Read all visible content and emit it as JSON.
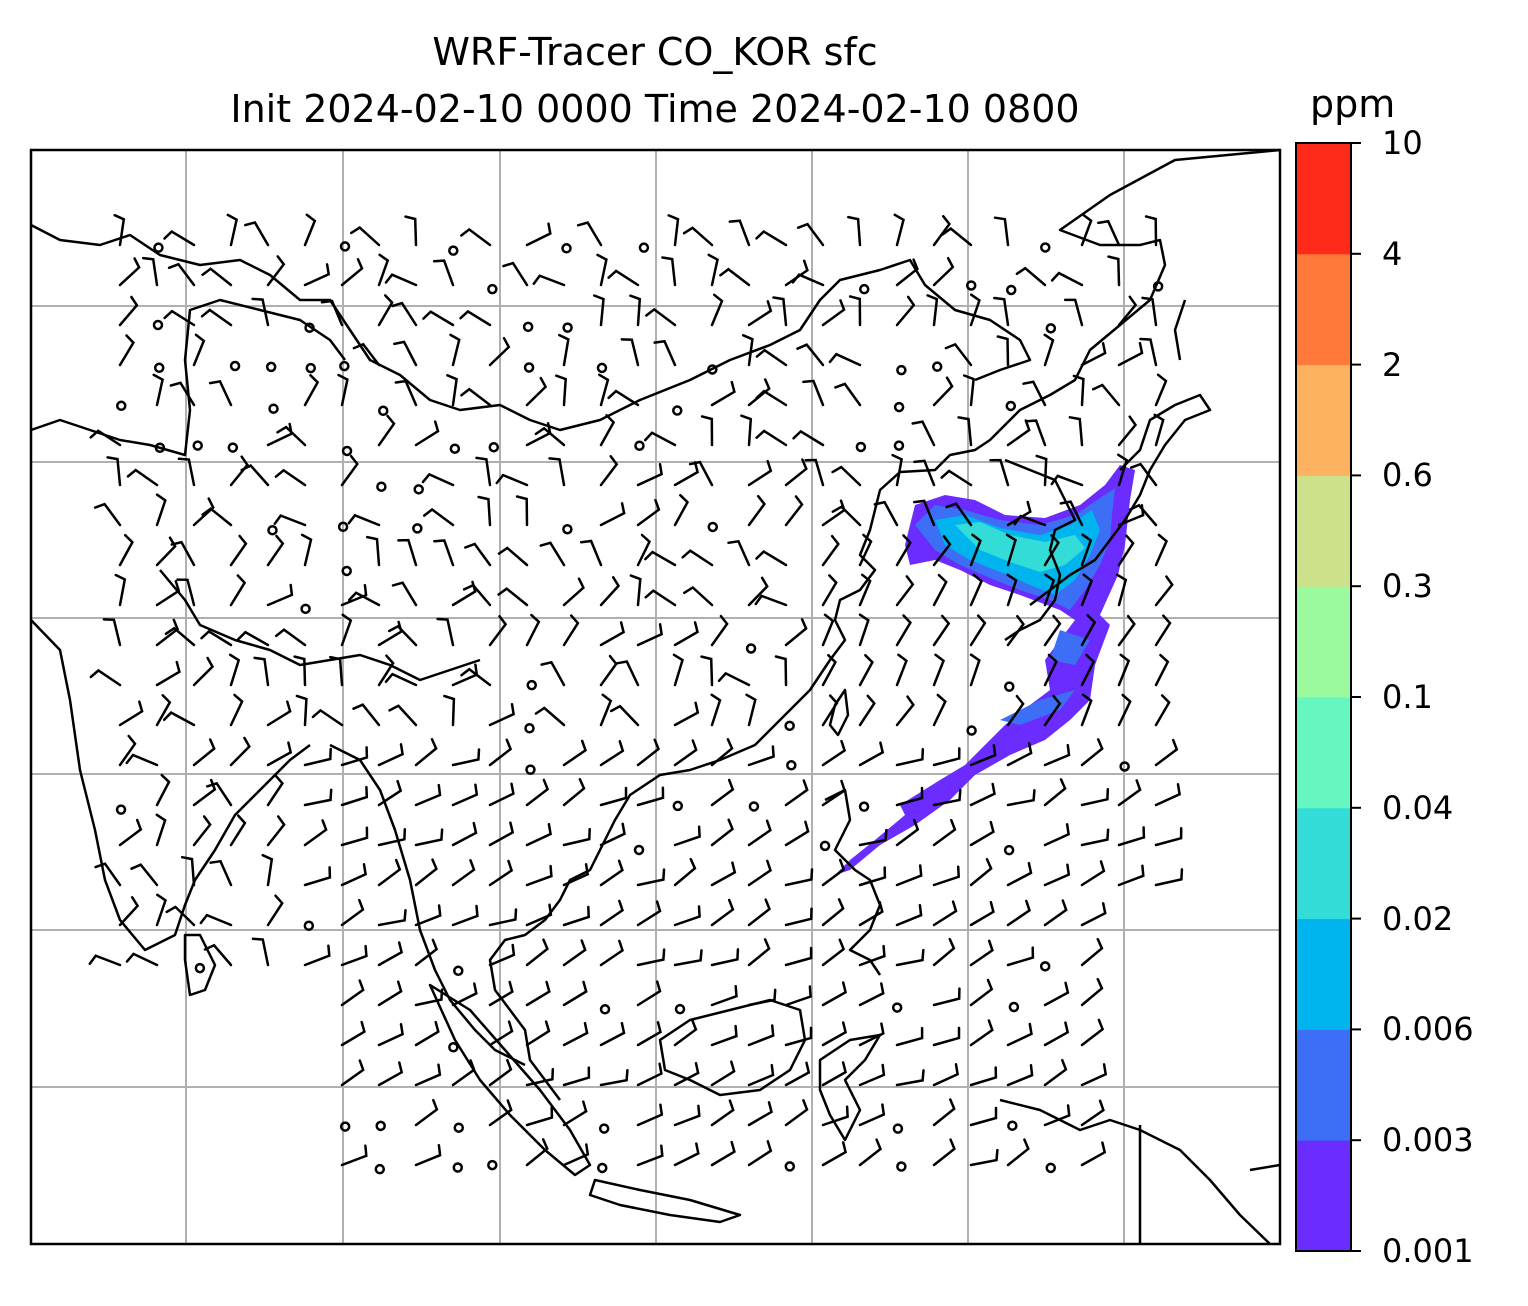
{
  "title_line1": "WRF-Tracer CO_KOR sfc",
  "title_line2": "Init 2024-02-10 0000 Time 2024-02-10 0800",
  "colorbar": {
    "unit": "ppm",
    "ticks": [
      "0.001",
      "0.003",
      "0.006",
      "0.02",
      "0.04",
      "0.1",
      "0.3",
      "0.6",
      "2",
      "4",
      "10"
    ],
    "colors": [
      "#6a2cff",
      "#3c6ff5",
      "#00b4ee",
      "#33dcd6",
      "#66f7c0",
      "#9bfa9e",
      "#cde08a",
      "#fdb262",
      "#ff7a3a",
      "#ff2a1a"
    ]
  },
  "map": {
    "grid_color": "#b0b0b0",
    "coastline_color": "#000000",
    "tracer_plume_levels": [
      "0.001",
      "0.003",
      "0.006",
      "0.02",
      "0.04"
    ]
  }
}
